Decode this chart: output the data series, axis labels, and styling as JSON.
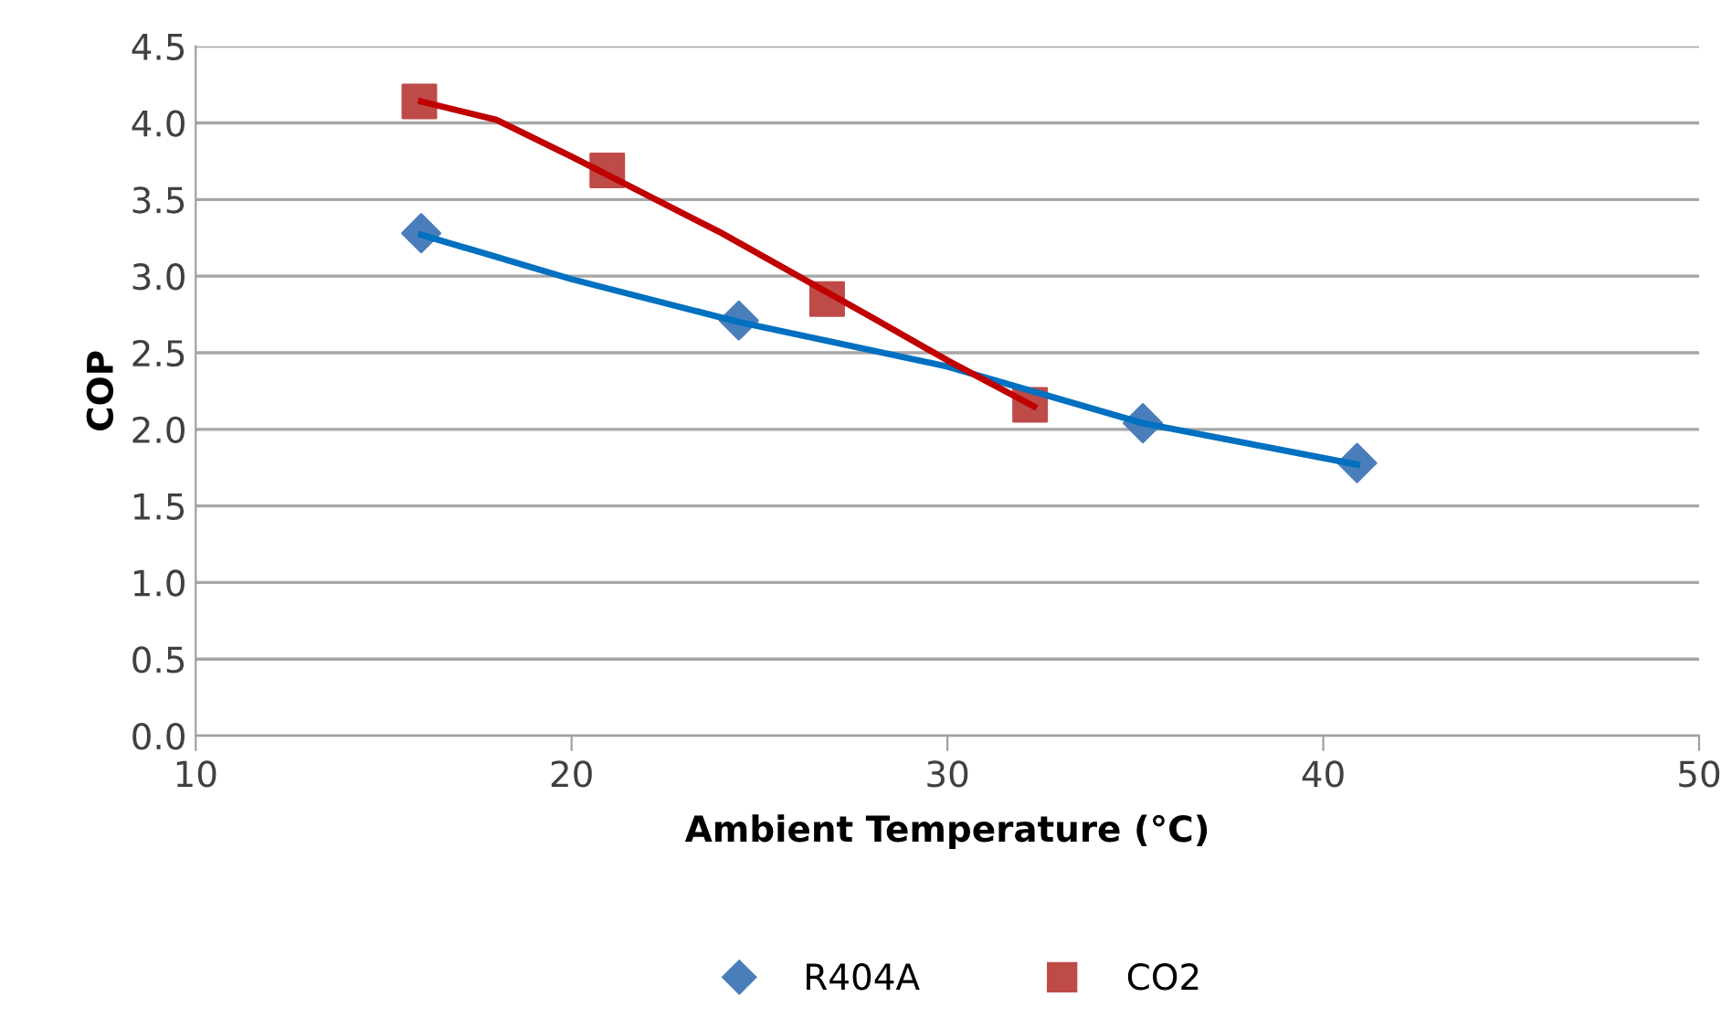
{
  "chart_data": {
    "type": "scatter",
    "xlabel": "Ambient Temperature (°C)",
    "ylabel": "COP",
    "series": [
      {
        "name": "R404A",
        "marker": "diamond",
        "color": "#4a7ebb",
        "x": [
          16.0,
          24.45,
          35.2,
          40.9
        ],
        "values": [
          3.28,
          2.71,
          2.04,
          1.78
        ]
      },
      {
        "name": "CO2",
        "marker": "square",
        "color": "#be4b48",
        "x": [
          15.95,
          20.95,
          26.8,
          32.2
        ],
        "values": [
          4.14,
          3.69,
          2.85,
          2.16
        ]
      },
      {
        "type": "line",
        "color": "#0070c0",
        "x": [
          16,
          20,
          24.45,
          30,
          35.2,
          40.9
        ],
        "values": [
          3.27,
          2.98,
          2.7,
          2.41,
          2.04,
          1.77
        ]
      },
      {
        "type": "line",
        "color": "#c00000",
        "x": [
          16,
          18,
          20,
          24,
          28,
          30,
          32.3
        ],
        "values": [
          4.14,
          4.02,
          3.78,
          3.28,
          2.73,
          2.45,
          2.15
        ]
      }
    ],
    "xlim": [
      10,
      50
    ],
    "xticks": [
      10,
      20,
      30,
      40,
      50
    ],
    "ylim": [
      0,
      4.5
    ],
    "yticks": [
      {
        "value": 0,
        "label": "0.0"
      },
      {
        "value": 0.5,
        "label": "0.5"
      },
      {
        "value": 1,
        "label": "1.0"
      },
      {
        "value": 1.5,
        "label": "1.5"
      },
      {
        "value": 2,
        "label": "2.0"
      },
      {
        "value": 2.5,
        "label": "2.5"
      },
      {
        "value": 3,
        "label": "3.0"
      },
      {
        "value": 3.5,
        "label": "3.5"
      },
      {
        "value": 4,
        "label": "4.0"
      },
      {
        "value": 4.5,
        "label": "4.5"
      }
    ],
    "grid": "y",
    "legend": "bottom"
  }
}
